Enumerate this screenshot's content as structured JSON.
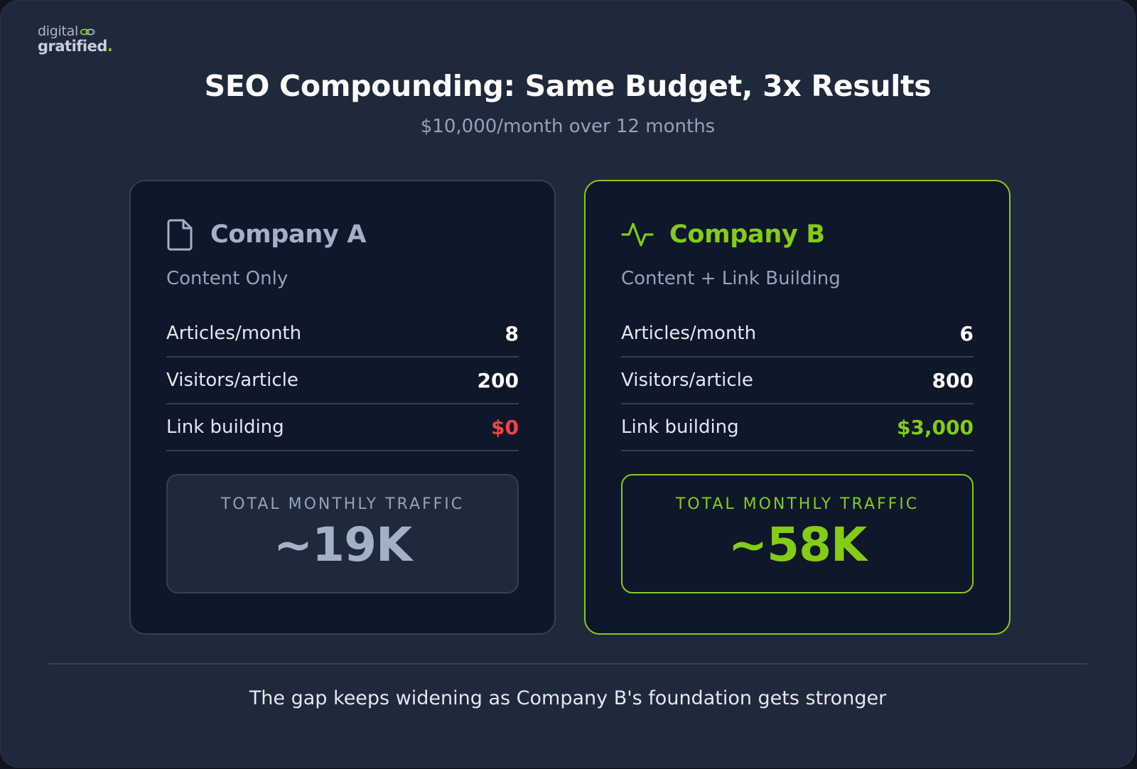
{
  "logo": {
    "line1": "digital",
    "line2": "gratified",
    "dot": "."
  },
  "header": {
    "title": "SEO Compounding: Same Budget, 3x Results",
    "subtitle": "$10,000/month over 12 months"
  },
  "company_a": {
    "icon": "document-icon",
    "name": "Company A",
    "strategy": "Content Only",
    "rows": [
      {
        "label": "Articles/month",
        "value": "8"
      },
      {
        "label": "Visitors/article",
        "value": "200"
      },
      {
        "label": "Link building",
        "value": "$0"
      }
    ],
    "total_label": "TOTAL MONTHLY TRAFFIC",
    "total_value": "~19K"
  },
  "company_b": {
    "icon": "activity-pulse-icon",
    "name": "Company B",
    "strategy": "Content + Link Building",
    "rows": [
      {
        "label": "Articles/month",
        "value": "6"
      },
      {
        "label": "Visitors/article",
        "value": "800"
      },
      {
        "label": "Link building",
        "value": "$3,000"
      }
    ],
    "total_label": "TOTAL MONTHLY TRAFFIC",
    "total_value": "~58K"
  },
  "footer": {
    "text": "The gap keeps widening as Company B's foundation gets stronger"
  },
  "colors": {
    "background": "#1e293b",
    "card": "#0f172a",
    "accent_green": "#84cc16",
    "negative_red": "#ef4444",
    "muted": "#94a3b8"
  }
}
